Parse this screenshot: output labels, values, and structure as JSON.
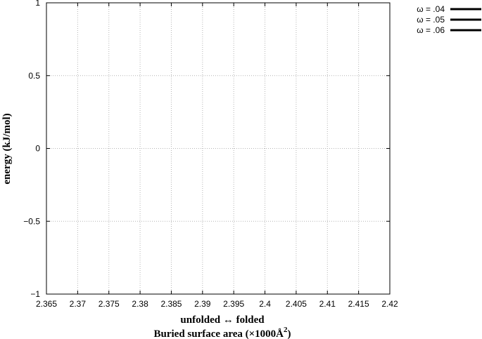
{
  "chart_data": {
    "type": "line",
    "xlim": [
      2.365,
      2.42
    ],
    "ylim": [
      -1,
      1
    ],
    "x_ticks": [
      "2.365",
      "2.37",
      "2.375",
      "2.38",
      "2.385",
      "2.39",
      "2.395",
      "2.4",
      "2.405",
      "2.41",
      "2.415",
      "2.42"
    ],
    "y_ticks": [
      "1",
      "0.5",
      "0",
      "−0.5",
      "−1"
    ],
    "xlabel_line1": "unfolded ↔ folded",
    "xlabel_line2": "Buried surface area (×1000Å",
    "xlabel_sup": "2",
    "xlabel_close": ")",
    "ylabel": "energy (kJ/mol)",
    "grid": true,
    "legend_position": "top-right",
    "series": [
      {
        "name": "ω = .04",
        "color": "#000000",
        "x": [],
        "y": []
      },
      {
        "name": "ω = .05",
        "color": "#000000",
        "x": [],
        "y": []
      },
      {
        "name": "ω = .06",
        "color": "#000000",
        "x": [],
        "y": []
      }
    ]
  }
}
